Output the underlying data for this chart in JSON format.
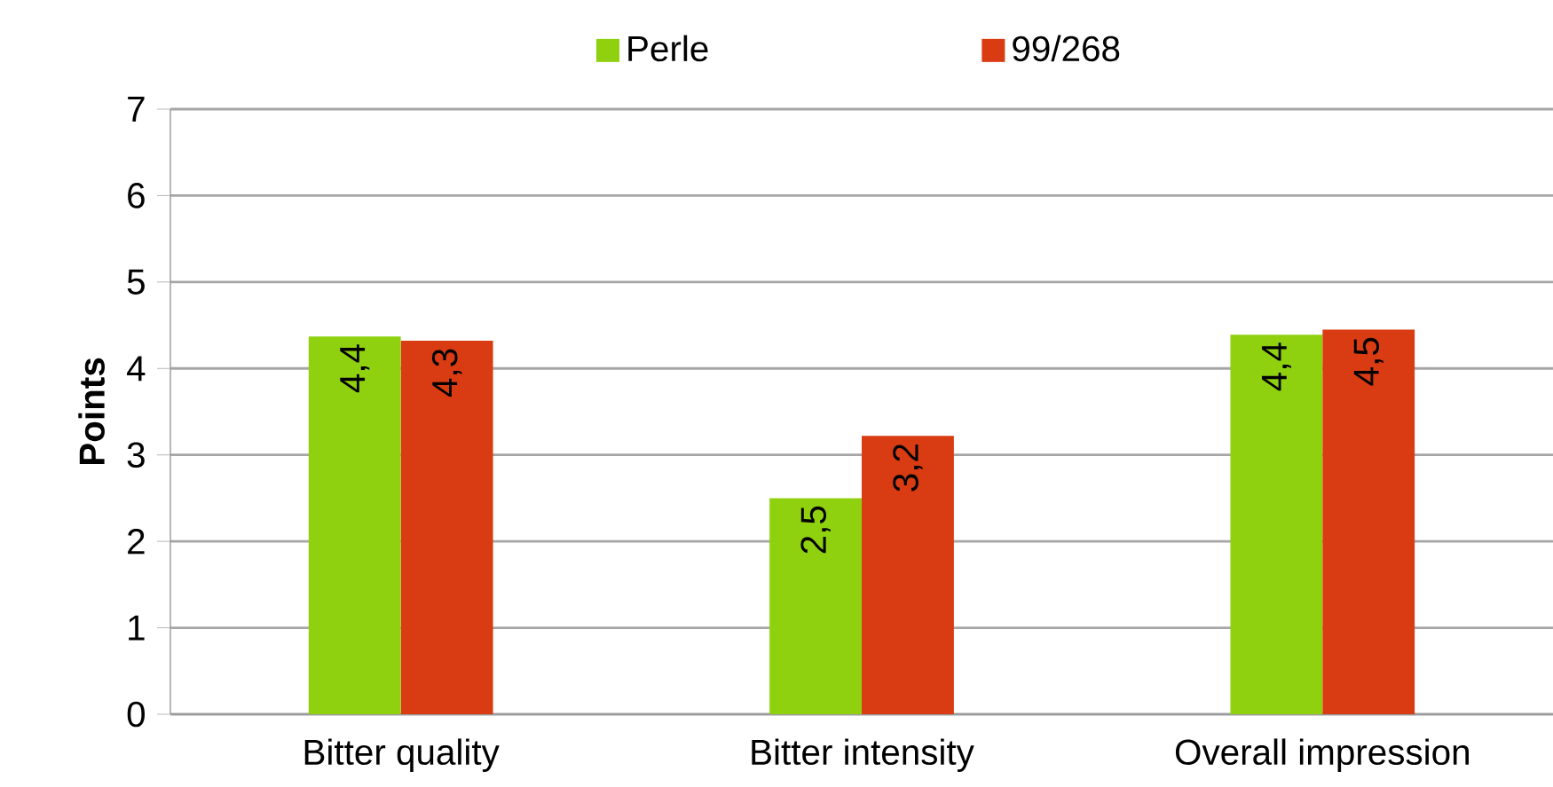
{
  "chart_data": {
    "type": "bar",
    "ylabel": "Points",
    "categories": [
      "Bitter quality",
      "Bitter intensity",
      "Overall impression"
    ],
    "series": [
      {
        "name": "Perle",
        "color": "#8fd10f",
        "values": [
          4.37,
          2.5,
          4.39
        ],
        "value_labels": [
          "4,4",
          "2,5",
          "4,4"
        ]
      },
      {
        "name": "99/268",
        "color": "#d93b12",
        "values": [
          4.32,
          3.22,
          4.45
        ],
        "value_labels": [
          "4,3",
          "3,2",
          "4,5"
        ]
      }
    ],
    "ylim": [
      0,
      7
    ],
    "yticks": [
      0,
      1,
      2,
      3,
      4,
      5,
      6,
      7
    ],
    "grid": "y",
    "legend": "top"
  }
}
